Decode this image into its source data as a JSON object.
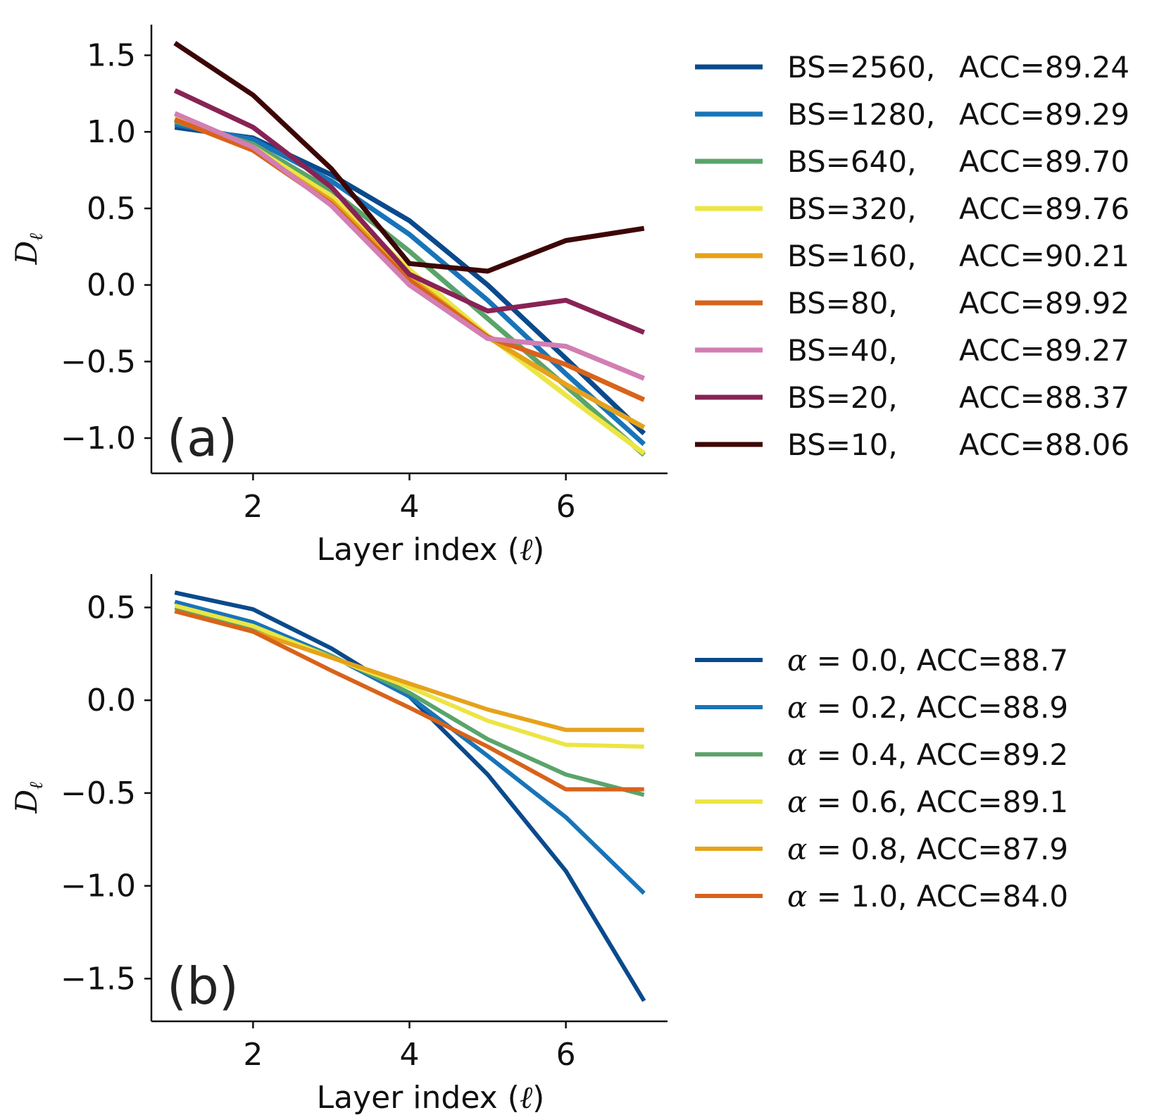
{
  "chart_data": [
    {
      "type": "line",
      "panel_label": "(a)",
      "xlabel": "Layer index (ℓ)",
      "xlabel_parts": [
        "Layer index (",
        "ℓ",
        ")"
      ],
      "ylabel": "D",
      "ylabel_sub": "ℓ",
      "xlim": [
        0.7,
        7.3
      ],
      "ylim": [
        -1.23,
        1.7
      ],
      "xticks": [
        2,
        4,
        6
      ],
      "xtick_labels": [
        "2",
        "4",
        "6"
      ],
      "yticks": [
        -1.0,
        -0.5,
        0.0,
        0.5,
        1.0,
        1.5
      ],
      "ytick_labels": [
        "−1.0",
        "−0.5",
        "0.0",
        "0.5",
        "1.0",
        "1.5"
      ],
      "x": [
        1,
        2,
        3,
        4,
        5,
        6,
        7
      ],
      "legend_position": "right",
      "series": [
        {
          "name": "BS=2560, ACC=89.24",
          "bs": "BS=2560,",
          "acc": "ACC=89.24",
          "color": "#0a4a8c",
          "values": [
            1.03,
            0.96,
            0.72,
            0.42,
            0.0,
            -0.48,
            -0.97
          ]
        },
        {
          "name": "BS=1280, ACC=89.29",
          "bs": "BS=1280,",
          "acc": "ACC=89.29",
          "color": "#1874b8",
          "values": [
            1.05,
            0.95,
            0.68,
            0.33,
            -0.1,
            -0.58,
            -1.04
          ]
        },
        {
          "name": "BS=640, ACC=89.70",
          "bs": "BS=640,",
          "acc": "ACC=89.70",
          "color": "#5aa46b",
          "values": [
            1.07,
            0.92,
            0.62,
            0.22,
            -0.22,
            -0.66,
            -1.11
          ]
        },
        {
          "name": "BS=320, ACC=89.76",
          "bs": "BS=320,",
          "acc": "ACC=89.76",
          "color": "#ece544",
          "values": [
            1.09,
            0.9,
            0.58,
            0.1,
            -0.33,
            -0.72,
            -1.1
          ]
        },
        {
          "name": "BS=160, ACC=90.21",
          "bs": "BS=160,",
          "acc": "ACC=90.21",
          "color": "#e6a21a",
          "values": [
            1.08,
            0.88,
            0.55,
            0.05,
            -0.34,
            -0.65,
            -0.93
          ]
        },
        {
          "name": "BS=80, ACC=89.92",
          "bs": "BS=80,",
          "acc": "ACC=89.92",
          "color": "#d8631b",
          "values": [
            1.08,
            0.88,
            0.53,
            0.03,
            -0.34,
            -0.52,
            -0.75
          ]
        },
        {
          "name": "BS=40, ACC=89.27",
          "bs": "BS=40,",
          "acc": "ACC=89.27",
          "color": "#d27eb3",
          "values": [
            1.12,
            0.9,
            0.52,
            0.0,
            -0.35,
            -0.4,
            -0.61
          ]
        },
        {
          "name": "BS=20, ACC=88.37",
          "bs": "BS=20,",
          "acc": "ACC=88.37",
          "color": "#882355",
          "values": [
            1.27,
            1.03,
            0.64,
            0.07,
            -0.17,
            -0.1,
            -0.31
          ]
        },
        {
          "name": "BS=10, ACC=88.06",
          "bs": "BS=10,",
          "acc": "ACC=88.06",
          "color": "#3d0606",
          "values": [
            1.58,
            1.24,
            0.76,
            0.14,
            0.09,
            0.29,
            0.37
          ]
        }
      ]
    },
    {
      "type": "line",
      "panel_label": "(b)",
      "xlabel": "Layer index (ℓ)",
      "xlabel_parts": [
        "Layer index (",
        "ℓ",
        ")"
      ],
      "ylabel": "D",
      "ylabel_sub": "ℓ",
      "xlim": [
        0.7,
        7.3
      ],
      "ylim": [
        -1.73,
        0.68
      ],
      "xticks": [
        2,
        4,
        6
      ],
      "xtick_labels": [
        "2",
        "4",
        "6"
      ],
      "yticks": [
        -1.5,
        -1.0,
        -0.5,
        0.0,
        0.5
      ],
      "ytick_labels": [
        "−1.5",
        "−1.0",
        "−0.5",
        "0.0",
        "0.5"
      ],
      "x": [
        1,
        2,
        3,
        4,
        5,
        6,
        7
      ],
      "legend_position": "right",
      "series": [
        {
          "name": "α = 0.0, ACC=88.7",
          "alpha_sym": "α",
          "rest": " = 0.0, ACC=88.7",
          "color": "#0a4a8c",
          "values": [
            0.58,
            0.49,
            0.28,
            0.02,
            -0.4,
            -0.92,
            -1.62
          ]
        },
        {
          "name": "α = 0.2, ACC=88.9",
          "alpha_sym": "α",
          "rest": " = 0.2, ACC=88.9",
          "color": "#1874b8",
          "values": [
            0.53,
            0.42,
            0.24,
            0.02,
            -0.3,
            -0.63,
            -1.04
          ]
        },
        {
          "name": "α = 0.4, ACC=89.2",
          "alpha_sym": "α",
          "rest": " = 0.4, ACC=89.2",
          "color": "#5aa46b",
          "values": [
            0.5,
            0.39,
            0.24,
            0.04,
            -0.21,
            -0.4,
            -0.51
          ]
        },
        {
          "name": "α = 0.6, ACC=89.1",
          "alpha_sym": "α",
          "rest": " = 0.6, ACC=89.1",
          "color": "#ece544",
          "values": [
            0.51,
            0.4,
            0.23,
            0.07,
            -0.11,
            -0.24,
            -0.25
          ]
        },
        {
          "name": "α = 0.8, ACC=87.9",
          "alpha_sym": "α",
          "rest": " = 0.8, ACC=87.9",
          "color": "#e6a21a",
          "values": [
            0.48,
            0.37,
            0.23,
            0.09,
            -0.05,
            -0.16,
            -0.16
          ]
        },
        {
          "name": "α = 1.0, ACC=84.0",
          "alpha_sym": "α",
          "rest": " = 1.0, ACC=84.0",
          "color": "#d8631b",
          "values": [
            0.48,
            0.37,
            0.16,
            -0.04,
            -0.25,
            -0.48,
            -0.48
          ]
        }
      ]
    }
  ]
}
